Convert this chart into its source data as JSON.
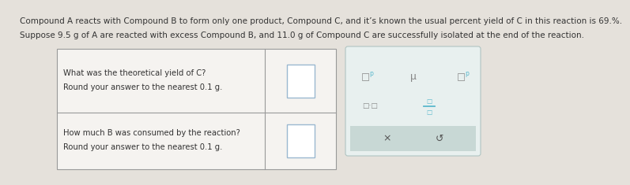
{
  "bg_color": "#e5e1db",
  "line1": "Compound A reacts with Compound B to form only one product, Compound C, and it’s known the usual percent yield of C in this reaction is 69.%.",
  "line2": "Suppose 9.5 g of A are reacted with excess Compound B, and 11.0 g of Compound C are successfully isolated at the end of the reaction.",
  "row1_q1": "What was the theoretical yield of C?",
  "row1_q2": "Round your answer to the nearest 0.1 g.",
  "row2_q1": "How much B was consumed by the reaction?",
  "row2_q2": "Round your answer to the nearest 0.1 g.",
  "text_color": "#333333",
  "table_fc": "#f5f3f0",
  "table_border": "#999999",
  "input_fc": "#ffffff",
  "input_border": "#9ab8d0",
  "toolbar_fc": "#e8f0ef",
  "toolbar_border": "#b0c4c2",
  "btn_fc": "#c8d8d5",
  "icon_color": "#5bb8cc",
  "icon_gray": "#888888",
  "font_size_top": 7.5,
  "font_size_table": 7.2,
  "font_size_icon": 7.0
}
